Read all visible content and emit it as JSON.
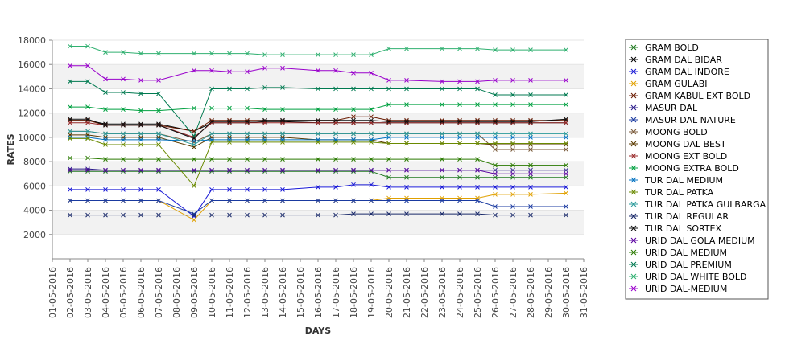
{
  "chart_data": {
    "type": "line",
    "xlabel": "DAYS",
    "ylabel": "RATES",
    "ylim": [
      0,
      18000
    ],
    "yticks": [
      2000,
      4000,
      6000,
      8000,
      10000,
      12000,
      14000,
      16000,
      18000
    ],
    "x_ticks": [
      "01-05-2016",
      "02-05-2016",
      "03-05-2016",
      "04-05-2016",
      "05-05-2016",
      "06-05-2016",
      "07-05-2016",
      "08-05-2016",
      "09-05-2016",
      "10-05-2016",
      "11-05-2016",
      "12-05-2016",
      "13-05-2016",
      "14-05-2016",
      "15-05-2016",
      "16-05-2016",
      "17-05-2016",
      "18-05-2016",
      "19-05-2016",
      "20-05-2016",
      "21-05-2016",
      "22-05-2016",
      "23-05-2016",
      "24-05-2016",
      "25-05-2016",
      "26-05-2016",
      "27-05-2016",
      "28-05-2016",
      "29-05-2016",
      "30-05-2016",
      "31-05-2016"
    ],
    "x_dates": [
      "02-05-2016",
      "03-05-2016",
      "04-05-2016",
      "05-05-2016",
      "06-05-2016",
      "07-05-2016",
      "09-05-2016",
      "10-05-2016",
      "11-05-2016",
      "12-05-2016",
      "13-05-2016",
      "14-05-2016",
      "16-05-2016",
      "17-05-2016",
      "18-05-2016",
      "19-05-2016",
      "20-05-2016",
      "21-05-2016",
      "23-05-2016",
      "24-05-2016",
      "25-05-2016",
      "26-05-2016",
      "27-05-2016",
      "28-05-2016",
      "30-05-2016"
    ],
    "grid": true,
    "legend_position": "right",
    "series": [
      {
        "name": "GRAM BOLD",
        "color": "#1f7a1f",
        "values": [
          7200,
          7200,
          7200,
          7200,
          7200,
          7200,
          7200,
          7200,
          7200,
          7200,
          7200,
          7200,
          7200,
          7200,
          7200,
          7200,
          6700,
          6700,
          6700,
          6700,
          6700,
          6700,
          6700,
          6700,
          6700
        ]
      },
      {
        "name": "GRAM DAL BIDAR",
        "color": "#000000",
        "values": [
          11400,
          11400,
          11100,
          11100,
          11100,
          11100,
          10500,
          11200,
          11200,
          11200,
          11300,
          11300,
          11200,
          11200,
          11200,
          11200,
          11200,
          11200,
          11200,
          11200,
          11200,
          11200,
          11200,
          11200,
          11200
        ]
      },
      {
        "name": "GRAM DAL INDORE",
        "color": "#1a1ad6",
        "values": [
          5700,
          5700,
          5700,
          5700,
          5700,
          5700,
          3500,
          5700,
          5700,
          5700,
          5700,
          5700,
          5900,
          5900,
          6100,
          6100,
          5900,
          5900,
          5900,
          5900,
          5900,
          5900,
          5900,
          5900,
          5900
        ]
      },
      {
        "name": "GRAM GULABI",
        "color": "#e0a000",
        "values": [
          4800,
          4800,
          4800,
          4800,
          4800,
          4800,
          3200,
          4800,
          4800,
          4800,
          4800,
          4800,
          4800,
          4800,
          4800,
          4800,
          5000,
          5000,
          5000,
          5000,
          5000,
          5300,
          5300,
          5300,
          5400
        ]
      },
      {
        "name": "GRAM KABUL EXT BOLD",
        "color": "#6a1a00",
        "values": [
          11400,
          11400,
          11000,
          11000,
          11000,
          11000,
          10500,
          11400,
          11400,
          11400,
          11400,
          11400,
          11400,
          11400,
          11700,
          11700,
          11400,
          11400,
          11400,
          11400,
          11400,
          11400,
          11400,
          11400,
          11400
        ]
      },
      {
        "name": "MASUR DAL",
        "color": "#2a1a8a",
        "values": [
          7400,
          7400,
          7300,
          7300,
          7300,
          7300,
          7300,
          7300,
          7300,
          7300,
          7300,
          7300,
          7300,
          7300,
          7300,
          7300,
          7300,
          7300,
          7300,
          7300,
          7300,
          7300,
          7300,
          7300,
          7300
        ]
      },
      {
        "name": "MASUR DAL NATURE",
        "color": "#1a3aa0",
        "values": [
          4800,
          4800,
          4800,
          4800,
          4800,
          4800,
          3700,
          4800,
          4800,
          4800,
          4800,
          4800,
          4800,
          4800,
          4800,
          4800,
          4800,
          4800,
          4800,
          4800,
          4800,
          4300,
          4300,
          4300,
          4300
        ]
      },
      {
        "name": "MOONG BOLD",
        "color": "#7a5a3a",
        "values": [
          10500,
          10500,
          10300,
          10300,
          10300,
          10300,
          9600,
          10300,
          10300,
          10300,
          10300,
          10300,
          10300,
          10300,
          10300,
          10300,
          10300,
          10300,
          10300,
          10300,
          10300,
          9000,
          9000,
          9000,
          9000
        ]
      },
      {
        "name": "MOONG DAL BEST",
        "color": "#5a3a00",
        "values": [
          10200,
          10200,
          10000,
          10000,
          10000,
          10000,
          9200,
          10000,
          10000,
          10000,
          10000,
          10000,
          9800,
          9800,
          9800,
          9800,
          9500,
          9500,
          9500,
          9500,
          9500,
          9400,
          9400,
          9400,
          9400
        ]
      },
      {
        "name": "MOONG EXT BOLD",
        "color": "#9a2a2a",
        "values": [
          11200,
          11200,
          11000,
          11000,
          11000,
          11000,
          10000,
          11200,
          11200,
          11200,
          11200,
          11200,
          11200,
          11200,
          11200,
          11200,
          11200,
          11200,
          11200,
          11200,
          11200,
          11200,
          11200,
          11200,
          11200
        ]
      },
      {
        "name": "MOONG EXTRA BOLD",
        "color": "#00a040",
        "values": [
          12500,
          12500,
          12300,
          12300,
          12200,
          12200,
          12400,
          12400,
          12400,
          12400,
          12300,
          12300,
          12300,
          12300,
          12300,
          12300,
          12700,
          12700,
          12700,
          12700,
          12700,
          12700,
          12700,
          12700,
          12700
        ]
      },
      {
        "name": "TUR DAL MEDIUM",
        "color": "#0070c0",
        "values": [
          10000,
          10000,
          9800,
          9800,
          9800,
          9800,
          9700,
          9800,
          9800,
          9800,
          9800,
          9800,
          9800,
          9800,
          9800,
          9800,
          10000,
          10000,
          10000,
          10000,
          10000,
          10000,
          10000,
          10000,
          10000
        ]
      },
      {
        "name": "TUR DAL PATKA",
        "color": "#6a8a00",
        "values": [
          9900,
          9900,
          9400,
          9400,
          9400,
          9400,
          6000,
          9600,
          9600,
          9600,
          9600,
          9600,
          9600,
          9600,
          9600,
          9600,
          9500,
          9500,
          9500,
          9500,
          9500,
          9500,
          9500,
          9500,
          9500
        ]
      },
      {
        "name": "TUR DAL PATKA GULBARGA",
        "color": "#2a9a9a",
        "values": [
          10500,
          10500,
          10300,
          10300,
          10300,
          10300,
          9400,
          10300,
          10300,
          10300,
          10300,
          10300,
          10300,
          10300,
          10300,
          10300,
          10300,
          10300,
          10300,
          10300,
          10300,
          10300,
          10300,
          10300,
          10300
        ]
      },
      {
        "name": "TUR DAL REGULAR",
        "color": "#1a2a6a",
        "values": [
          3600,
          3600,
          3600,
          3600,
          3600,
          3600,
          3600,
          3600,
          3600,
          3600,
          3600,
          3600,
          3600,
          3600,
          3700,
          3700,
          3700,
          3700,
          3700,
          3700,
          3700,
          3600,
          3600,
          3600,
          3600
        ]
      },
      {
        "name": "TUR DAL SORTEX",
        "color": "#101010",
        "values": [
          11500,
          11500,
          11000,
          11000,
          11000,
          11000,
          9900,
          11300,
          11300,
          11300,
          11400,
          11400,
          11400,
          11400,
          11400,
          11400,
          11300,
          11300,
          11300,
          11300,
          11300,
          11300,
          11300,
          11300,
          11500
        ]
      },
      {
        "name": "URID DAL GOLA MEDIUM",
        "color": "#5a00a0",
        "values": [
          7300,
          7300,
          7300,
          7300,
          7300,
          7300,
          7300,
          7300,
          7300,
          7300,
          7300,
          7300,
          7300,
          7300,
          7300,
          7300,
          7300,
          7300,
          7300,
          7300,
          7300,
          7000,
          7000,
          7000,
          7000
        ]
      },
      {
        "name": "URID DAL MEDIUM",
        "color": "#2a7a00",
        "values": [
          8300,
          8300,
          8200,
          8200,
          8200,
          8200,
          8200,
          8200,
          8200,
          8200,
          8200,
          8200,
          8200,
          8200,
          8200,
          8200,
          8200,
          8200,
          8200,
          8200,
          8200,
          7700,
          7700,
          7700,
          7700
        ]
      },
      {
        "name": "URID DAL PREMIUM",
        "color": "#007a50",
        "values": [
          14600,
          14600,
          13700,
          13700,
          13600,
          13600,
          10100,
          14000,
          14000,
          14000,
          14100,
          14100,
          14000,
          14000,
          14000,
          14000,
          14000,
          14000,
          14000,
          14000,
          14000,
          13500,
          13500,
          13500,
          13500
        ]
      },
      {
        "name": "URID DAL WHITE BOLD",
        "color": "#30b070",
        "values": [
          17500,
          17500,
          17000,
          17000,
          16900,
          16900,
          16900,
          16900,
          16900,
          16900,
          16800,
          16800,
          16800,
          16800,
          16800,
          16800,
          17300,
          17300,
          17300,
          17300,
          17300,
          17200,
          17200,
          17200,
          17200
        ]
      },
      {
        "name": "URID DAL-MEDIUM",
        "color": "#9900cc",
        "values": [
          15900,
          15900,
          14800,
          14800,
          14700,
          14700,
          15500,
          15500,
          15400,
          15400,
          15700,
          15700,
          15500,
          15500,
          15300,
          15300,
          14700,
          14700,
          14600,
          14600,
          14600,
          14700,
          14700,
          14700,
          14700
        ]
      }
    ]
  }
}
